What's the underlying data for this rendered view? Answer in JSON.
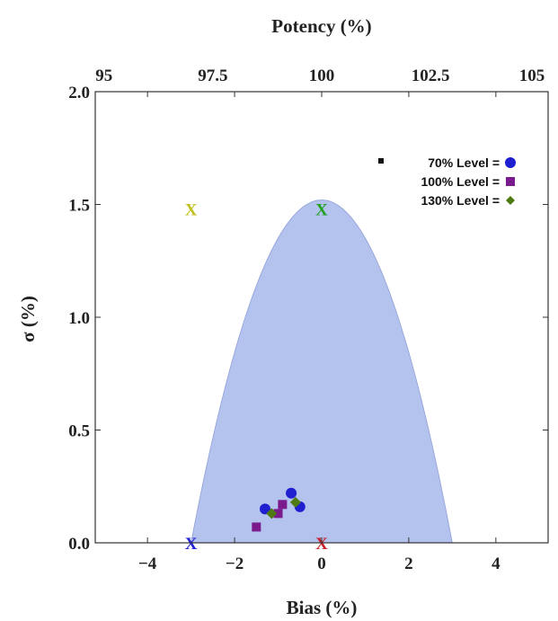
{
  "chart_data": {
    "type": "scatter",
    "title": "",
    "xlabel": "Bias (%)",
    "ylabel": "σ (%)",
    "top_label": "Potency (%)",
    "xlim": [
      -5.2,
      5.2
    ],
    "ylim": [
      0,
      2.0
    ],
    "top_xlim": [
      94.8,
      105.2
    ],
    "x_ticks": [
      -4,
      -2,
      0,
      2,
      4
    ],
    "y_ticks": [
      0.0,
      0.5,
      1.0,
      1.5,
      2.0
    ],
    "x_tick_labels": [
      "−4",
      "−2",
      "0",
      "2",
      "4"
    ],
    "y_tick_labels": [
      "0.0",
      "0.5",
      "1.0",
      "1.5",
      "2.0"
    ],
    "top_ticks": [
      95,
      97.5,
      100,
      102.5,
      105
    ],
    "top_tick_labels": [
      "95",
      "97.5",
      "100",
      "102.5",
      "105"
    ],
    "acceptance_region": {
      "color": "#b4c2ee",
      "x_range": [
        -3,
        3
      ],
      "peak": [
        0,
        1.52
      ]
    },
    "series": [
      {
        "name": "70%   Level = ",
        "marker": "circle",
        "color": "#1f1fd0",
        "points": [
          [
            -1.3,
            0.15
          ],
          [
            -0.7,
            0.22
          ],
          [
            -0.5,
            0.16
          ]
        ]
      },
      {
        "name": "100%   Level = ",
        "marker": "square",
        "color": "#7a1a8c",
        "points": [
          [
            -1.5,
            0.07
          ],
          [
            -1.0,
            0.13
          ],
          [
            -0.9,
            0.17
          ]
        ]
      },
      {
        "name": "130%   Level = ",
        "marker": "diamond",
        "color": "#4f7a12",
        "points": [
          [
            -1.15,
            0.13
          ],
          [
            -0.6,
            0.18
          ]
        ]
      }
    ],
    "legend_position": "top-right",
    "annotations": [
      {
        "text": "X",
        "x": -3,
        "y": 1.48,
        "color": "#c0c020"
      },
      {
        "text": "X",
        "x": 0,
        "y": 1.48,
        "color": "#1fa01f"
      },
      {
        "text": "X",
        "x": -3,
        "y": 0,
        "color": "#2020d8"
      },
      {
        "text": "X",
        "x": 0,
        "y": 0,
        "color": "#c8202a"
      }
    ],
    "grid": false
  }
}
